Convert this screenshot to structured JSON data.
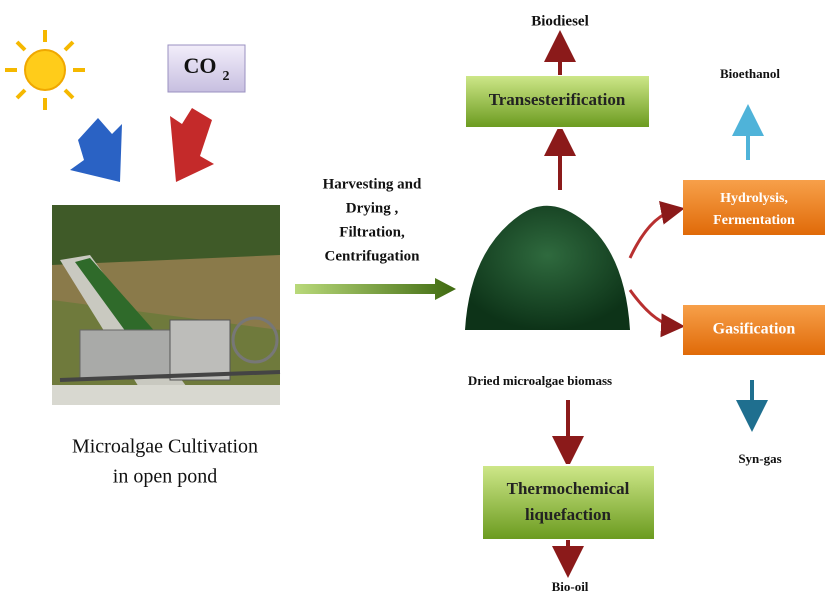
{
  "co2": {
    "text": "CO",
    "subscript": "2"
  },
  "cultivation": {
    "lines": [
      "Microalgae Cultivation",
      "in open pond"
    ]
  },
  "harvesting": {
    "lines": [
      "Harvesting and",
      "Drying ,",
      "Filtration,",
      "Centrifugation"
    ]
  },
  "biomass": {
    "label": "Dried microalgae biomass"
  },
  "processes": {
    "transesterification": {
      "label": "Transesterification",
      "product": "Biodiesel"
    },
    "hydrolysis": {
      "lines": [
        "Hydrolysis,",
        "Fermentation"
      ],
      "product": "Bioethanol"
    },
    "gasification": {
      "label": "Gasification",
      "product": "Syn-gas"
    },
    "liquefaction": {
      "lines": [
        "Thermochemical",
        "liquefaction"
      ],
      "product": "Bio-oil"
    }
  }
}
